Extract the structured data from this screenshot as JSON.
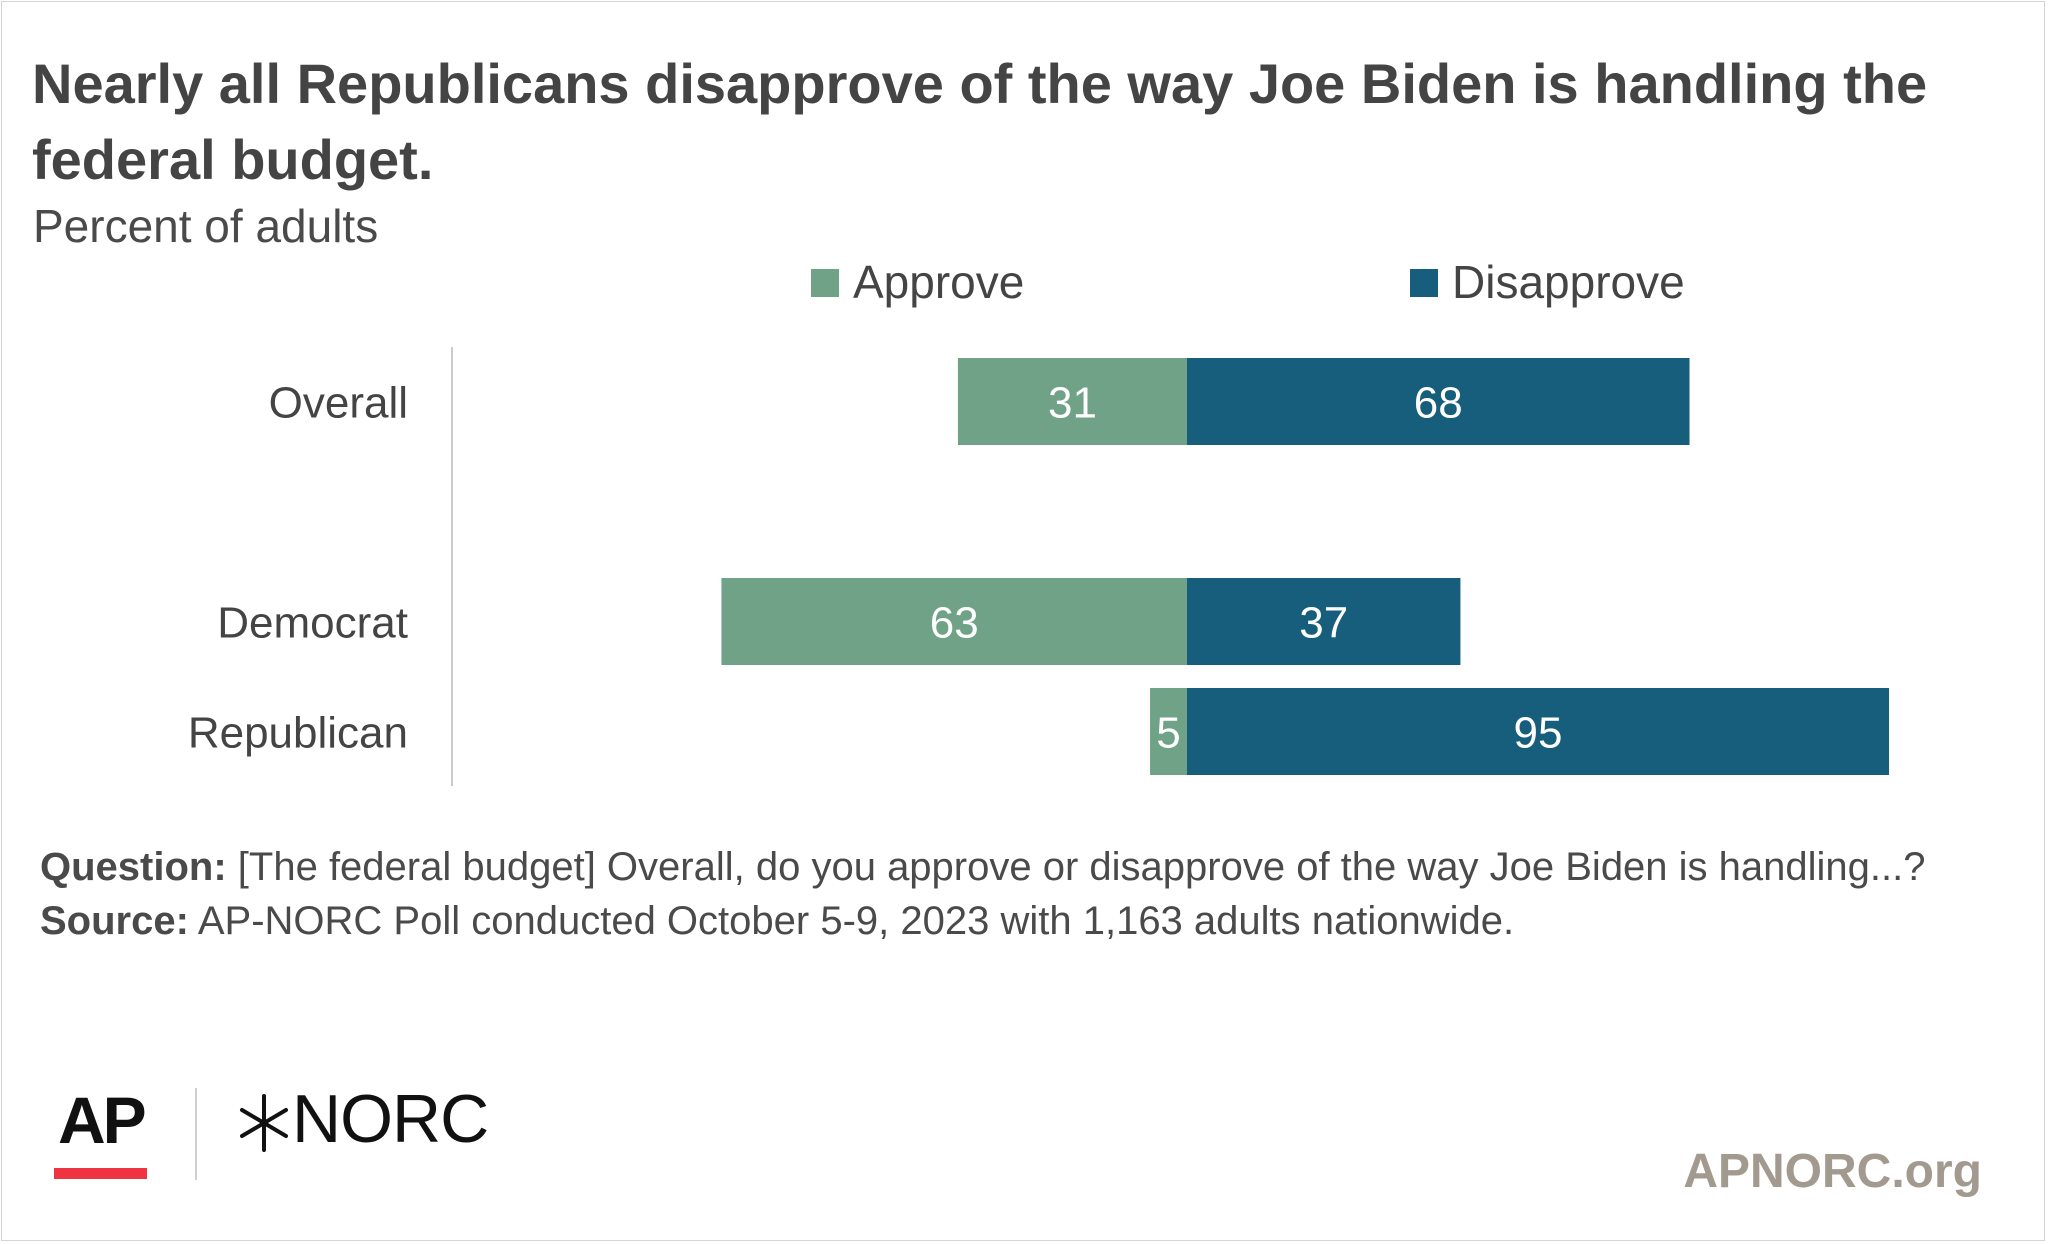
{
  "header": {
    "title": "Nearly all Republicans disapprove of the way Joe Biden is handling the federal budget.",
    "subtitle": "Percent of adults"
  },
  "chart_data": {
    "type": "bar",
    "orientation": "horizontal-diverging",
    "title": "Nearly all Republicans disapprove of the way Joe Biden is handling the federal budget.",
    "subtitle": "Percent of adults",
    "categories": [
      "Overall",
      "Democrat",
      "Republican"
    ],
    "series": [
      {
        "name": "Approve",
        "values": [
          31,
          63,
          5
        ],
        "color": "#6fa287",
        "direction": "left"
      },
      {
        "name": "Disapprove",
        "values": [
          68,
          37,
          95
        ],
        "color": "#175e7d",
        "direction": "right"
      }
    ],
    "legend": "top-center",
    "grid": false,
    "xlabel": "",
    "ylabel": ""
  },
  "notes": {
    "question_label": "Question:",
    "question_text": " [The federal budget] Overall, do you approve or disapprove of the way Joe Biden is handling...?",
    "source_label": "Source:",
    "source_text": " AP-NORC Poll conducted October 5-9, 2023 with 1,163 adults nationwide."
  },
  "footer": {
    "logo_ap": "AP",
    "logo_norc": "NORC",
    "site": "APNORC.org"
  },
  "colors": {
    "approve": "#6fa287",
    "disapprove": "#175e7d",
    "ap_red": "#ef3340",
    "site_text": "#a39a8f"
  }
}
